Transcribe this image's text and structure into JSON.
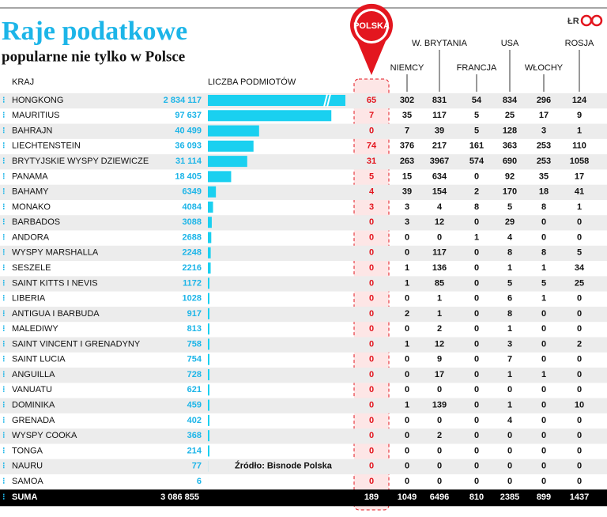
{
  "header": {
    "title": "Raje podatkowe",
    "subtitle": "popularne nie tylko w Polsce",
    "credit": "ŁR"
  },
  "table": {
    "columns": {
      "country": "KRAJ",
      "count": "LICZBA PODMIOTÓW",
      "poland": "POLSKA",
      "others": [
        "NIEMCY",
        "W. BRYTANIA",
        "FRANCJA",
        "USA",
        "WŁOCHY",
        "ROSJA"
      ]
    },
    "rows": [
      {
        "name": "HONGKONG",
        "count": {
          "value": 2834117,
          "label": "2 834 117"
        },
        "values": [
          65,
          302,
          831,
          54,
          834,
          296,
          124
        ]
      },
      {
        "name": "MAURITIUS",
        "count": {
          "value": 97637,
          "label": "97 637"
        },
        "values": [
          7,
          35,
          117,
          5,
          25,
          17,
          9
        ]
      },
      {
        "name": "BAHRAJN",
        "count": {
          "value": 40499,
          "label": "40 499"
        },
        "values": [
          0,
          7,
          39,
          5,
          128,
          3,
          1
        ]
      },
      {
        "name": "LIECHTENSTEIN",
        "count": {
          "value": 36093,
          "label": "36 093"
        },
        "values": [
          74,
          376,
          217,
          161,
          363,
          253,
          110
        ]
      },
      {
        "name": "BRYTYJSKIE WYSPY DZIEWICZE",
        "count": {
          "value": 31114,
          "label": "31 114"
        },
        "values": [
          31,
          263,
          3967,
          574,
          690,
          253,
          1058
        ]
      },
      {
        "name": "PANAMA",
        "count": {
          "value": 18405,
          "label": "18 405"
        },
        "values": [
          5,
          15,
          634,
          0,
          92,
          35,
          17
        ]
      },
      {
        "name": "BAHAMY",
        "count": 6349,
        "values": [
          4,
          39,
          154,
          2,
          170,
          18,
          41
        ]
      },
      {
        "name": "MONAKO",
        "count": 4084,
        "values": [
          3,
          3,
          4,
          8,
          5,
          8,
          1
        ]
      },
      {
        "name": "BARBADOS",
        "count": 3088,
        "values": [
          0,
          3,
          12,
          0,
          29,
          0,
          0
        ]
      },
      {
        "name": "ANDORA",
        "count": 2688,
        "values": [
          0,
          0,
          0,
          1,
          4,
          0,
          0
        ]
      },
      {
        "name": "WYSPY MARSHALLA",
        "count": 2248,
        "values": [
          0,
          0,
          117,
          0,
          8,
          8,
          5
        ]
      },
      {
        "name": "SESZELE",
        "count": 2216,
        "values": [
          0,
          1,
          136,
          0,
          1,
          1,
          34
        ]
      },
      {
        "name": "SAINT KITTS I NEVIS",
        "count": 1172,
        "values": [
          0,
          1,
          85,
          0,
          5,
          5,
          25
        ]
      },
      {
        "name": "LIBERIA",
        "count": 1028,
        "values": [
          0,
          0,
          1,
          0,
          6,
          1,
          0
        ]
      },
      {
        "name": "ANTIGUA I BARBUDA",
        "count": 917,
        "values": [
          0,
          2,
          1,
          0,
          8,
          0,
          0
        ]
      },
      {
        "name": "MALEDIWY",
        "count": 813,
        "values": [
          0,
          0,
          2,
          0,
          1,
          0,
          0
        ]
      },
      {
        "name": "SAINT VINCENT I GRENADYNY",
        "count": 758,
        "values": [
          0,
          1,
          12,
          0,
          3,
          0,
          2
        ]
      },
      {
        "name": "SAINT LUCIA",
        "count": 754,
        "values": [
          0,
          0,
          9,
          0,
          7,
          0,
          0
        ]
      },
      {
        "name": "ANGUILLA",
        "count": 728,
        "values": [
          0,
          0,
          17,
          0,
          1,
          1,
          0
        ]
      },
      {
        "name": "VANUATU",
        "count": 621,
        "values": [
          0,
          0,
          0,
          0,
          0,
          0,
          0
        ]
      },
      {
        "name": "DOMINIKA",
        "count": 459,
        "values": [
          0,
          1,
          139,
          0,
          1,
          0,
          10
        ]
      },
      {
        "name": "GRENADA",
        "count": 402,
        "values": [
          0,
          0,
          0,
          0,
          4,
          0,
          0
        ]
      },
      {
        "name": "WYSPY COOKA",
        "count": 368,
        "values": [
          0,
          0,
          2,
          0,
          0,
          0,
          0
        ]
      },
      {
        "name": "TONGA",
        "count": 214,
        "values": [
          0,
          0,
          0,
          0,
          0,
          0,
          0
        ]
      },
      {
        "name": "NAURU",
        "count": 77,
        "values": [
          0,
          0,
          0,
          0,
          0,
          0,
          0
        ]
      },
      {
        "name": "SAMOA",
        "count": 6,
        "values": [
          0,
          0,
          0,
          0,
          0,
          0,
          0
        ]
      }
    ],
    "total": {
      "label": "SUMA",
      "count": {
        "value": 3086855,
        "label": "3 086 855"
      },
      "values": [
        189,
        1049,
        6496,
        810,
        2385,
        899,
        1437
      ]
    }
  },
  "source": "Źródło: Bisnode Polska"
}
